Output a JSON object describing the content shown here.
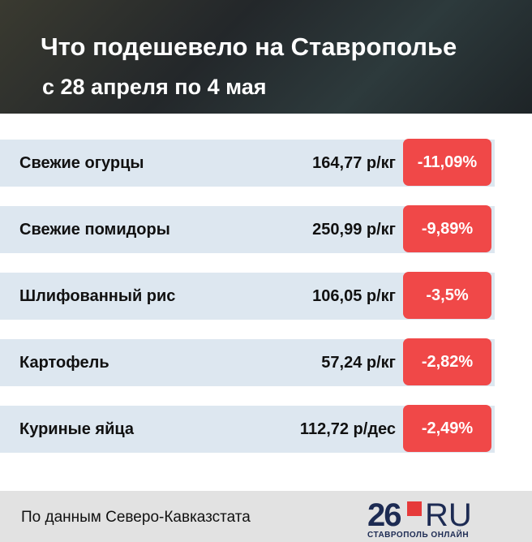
{
  "header": {
    "title": "Что подешевело на Ставрополье",
    "subtitle": "с 28 апреля по 4 мая"
  },
  "table": {
    "rows": [
      [
        "Свежие огурцы",
        "164,77 р/кг",
        "-11,09%"
      ],
      [
        "Свежие помидоры",
        "250,99 р/кг",
        "-9,89%"
      ],
      [
        "Шлифованный рис",
        "106,05 р/кг",
        "-3,5%"
      ],
      [
        "Картофель",
        "57,24 р/кг",
        "-2,82%"
      ],
      [
        "Куриные яйца",
        "112,72 р/дес",
        "-2,49%"
      ]
    ]
  },
  "footer": {
    "source": "По данным Северо-Кавказстата",
    "logo_number": "26",
    "logo_domain": "RU",
    "logo_caption": "СТАВРОПОЛЬ ОНЛАЙН"
  }
}
